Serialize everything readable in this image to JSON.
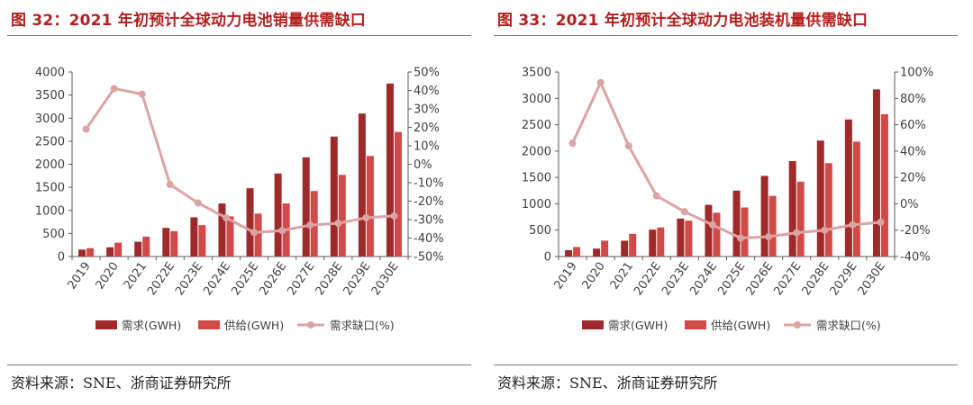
{
  "colors": {
    "title": "#b41e1e",
    "demand_bar": "#9e2a2b",
    "supply_bar": "#cf4a48",
    "gap_line": "#dca3a3",
    "axis": "#595959",
    "text": "#404040"
  },
  "chart_data": [
    {
      "type": "bar",
      "title": "图 32：2021 年初预计全球动力电池销量供需缺口",
      "source": "资料来源：SNE、浙商证券研究所",
      "categories": [
        "2019",
        "2020",
        "2021",
        "2022E",
        "2023E",
        "2024E",
        "2025E",
        "2026E",
        "2027E",
        "2028E",
        "2029E",
        "2030E"
      ],
      "series": [
        {
          "name": "需求(GWH)",
          "kind": "bar",
          "axis": "left",
          "values": [
            150,
            200,
            320,
            620,
            850,
            1150,
            1480,
            1800,
            2150,
            2600,
            3100,
            3750
          ]
        },
        {
          "name": "供给(GWH)",
          "kind": "bar",
          "axis": "left",
          "values": [
            180,
            300,
            430,
            550,
            680,
            870,
            930,
            1150,
            1420,
            1770,
            2180,
            2700
          ]
        },
        {
          "name": "需求缺口(%)",
          "kind": "line",
          "axis": "right",
          "values": [
            19,
            41,
            38,
            -11,
            -21,
            -29,
            -37,
            -36,
            -33,
            -32,
            -29,
            -28
          ]
        }
      ],
      "ylim_left": [
        0,
        4000
      ],
      "yticks_left": [
        0,
        500,
        1000,
        1500,
        2000,
        2500,
        3000,
        3500,
        4000
      ],
      "ylim_right": [
        -50,
        50
      ],
      "yticks_right": [
        -50,
        -40,
        -30,
        -20,
        -10,
        0,
        10,
        20,
        30,
        40,
        50
      ],
      "yticklabels_right": [
        "-50%",
        "-40%",
        "-30%",
        "-20%",
        "-10%",
        "0%",
        "10%",
        "20%",
        "30%",
        "40%",
        "50%"
      ]
    },
    {
      "type": "bar",
      "title": "图 33：2021 年初预计全球动力电池装机量供需缺口",
      "source": "资料来源：SNE、浙商证券研究所",
      "categories": [
        "2019",
        "2020",
        "2021",
        "2022E",
        "2023E",
        "2024E",
        "2025E",
        "2026E",
        "2027E",
        "2028E",
        "2029E",
        "2030E"
      ],
      "series": [
        {
          "name": "需求(GWH)",
          "kind": "bar",
          "axis": "left",
          "values": [
            120,
            150,
            300,
            510,
            720,
            980,
            1250,
            1530,
            1810,
            2200,
            2600,
            3170
          ]
        },
        {
          "name": "供给(GWH)",
          "kind": "bar",
          "axis": "left",
          "values": [
            180,
            300,
            430,
            550,
            680,
            830,
            930,
            1150,
            1420,
            1770,
            2180,
            2700
          ]
        },
        {
          "name": "需求缺口(%)",
          "kind": "line",
          "axis": "right",
          "values": [
            46,
            92,
            44,
            6,
            -6,
            -16,
            -26,
            -25,
            -22,
            -20,
            -16,
            -14
          ]
        }
      ],
      "ylim_left": [
        0,
        3500
      ],
      "yticks_left": [
        0,
        500,
        1000,
        1500,
        2000,
        2500,
        3000,
        3500
      ],
      "ylim_right": [
        -40,
        100
      ],
      "yticks_right": [
        -40,
        -20,
        0,
        20,
        40,
        60,
        80,
        100
      ],
      "yticklabels_right": [
        "-40%",
        "-20%",
        "0%",
        "20%",
        "40%",
        "60%",
        "80%",
        "100%"
      ]
    }
  ]
}
